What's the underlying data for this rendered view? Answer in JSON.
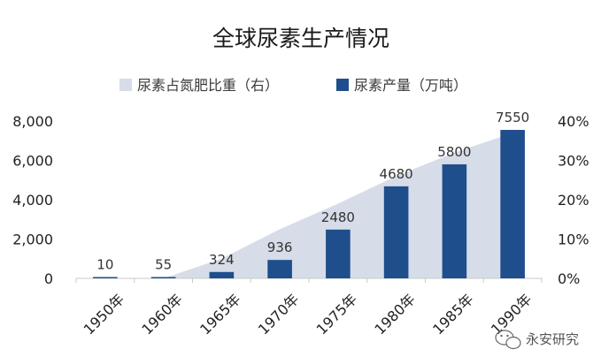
{
  "chart_data": {
    "type": "bar",
    "title": "全球尿素生产情况",
    "categories": [
      "1950年",
      "1960年",
      "1965年",
      "1970年",
      "1975年",
      "1980年",
      "1985年",
      "1990年"
    ],
    "series": [
      {
        "name": "尿素产量（万吨）",
        "type": "bar",
        "axis": "left",
        "color": "#1f4e8c",
        "values": [
          10,
          55,
          324,
          936,
          2480,
          4680,
          5800,
          7550
        ],
        "data_labels": [
          "10",
          "55",
          "324",
          "936",
          "2480",
          "4680",
          "5800",
          "7550"
        ]
      },
      {
        "name": "尿素占氮肥比重（右）",
        "type": "area",
        "axis": "right",
        "color": "#d6dde8",
        "values": [
          0,
          0,
          5,
          12.5,
          19,
          26,
          32,
          37
        ]
      }
    ],
    "y_left": {
      "ticks": [
        "0",
        "2,000",
        "4,000",
        "6,000",
        "8,000"
      ],
      "range": [
        0,
        8000
      ]
    },
    "y_right": {
      "ticks": [
        "0%",
        "10%",
        "20%",
        "30%",
        "40%"
      ],
      "range": [
        0,
        40
      ]
    },
    "legend_position": "top",
    "grid": false
  },
  "watermark": {
    "text": "永安研究",
    "icon": "wechat-icon"
  }
}
